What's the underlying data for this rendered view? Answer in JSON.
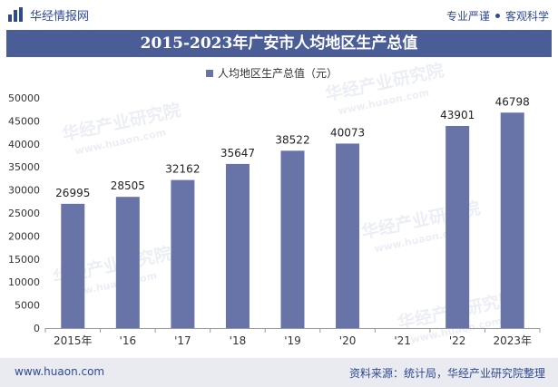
{
  "brand": {
    "name": "华经情报网",
    "logo_icon": "bar-chart-logo-icon"
  },
  "tagline": {
    "left": "专业严谨",
    "right": "客观科学"
  },
  "title": "2015-2023年广安市人均地区生产总值",
  "watermark": "华经产业研究院",
  "watermark_url": "www.huaon.com",
  "footer": {
    "site": "www.huaon.com",
    "source": "资料来源：统计局，华经产业研究院整理"
  },
  "colors": {
    "bar": "#6874a8",
    "title_bg": "#4a5d96",
    "accent": "#2e4a92",
    "footer_bg": "#e9ebf0"
  },
  "chart_data": {
    "type": "bar",
    "title": "2015-2023年广安市人均地区生产总值",
    "legend": {
      "label": "人均地区生产总值（元）",
      "position": "top-center"
    },
    "categories": [
      "2015年",
      "'16",
      "'17",
      "'18",
      "'19",
      "'20",
      "'21",
      "'22",
      "2023年"
    ],
    "values": [
      26995,
      28505,
      32162,
      35647,
      38522,
      40073,
      null,
      43901,
      46798
    ],
    "data_labels": [
      "26995",
      "28505",
      "32162",
      "35647",
      "38522",
      "40073",
      "",
      "43901",
      "46798"
    ],
    "ylim": [
      0,
      50000
    ],
    "yticks": [
      0,
      5000,
      10000,
      15000,
      20000,
      25000,
      30000,
      35000,
      40000,
      45000,
      50000
    ],
    "xlabel": "",
    "ylabel": "",
    "grid": false
  }
}
